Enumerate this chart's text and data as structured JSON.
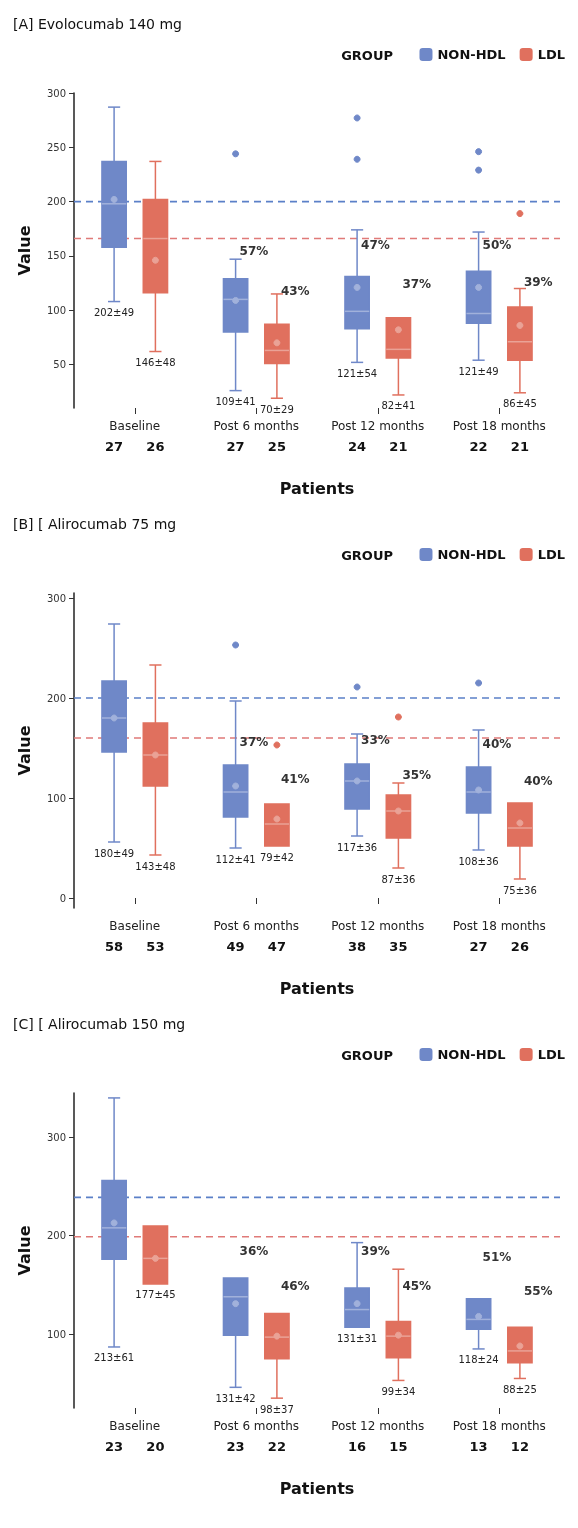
{
  "chart_data": [
    {
      "type": "box",
      "title": "[A] Evolocumab 140 mg",
      "xlabel": "Patients",
      "ylabel": "Value",
      "legend_title": "GROUP",
      "legend": "top right",
      "grid": false,
      "categories": [
        "Baseline",
        "Post 6 months",
        "Post 12 months",
        "Post 18 months"
      ],
      "ylim": [
        10,
        300
      ],
      "yticks": [
        50,
        100,
        150,
        200,
        250,
        300
      ],
      "series": [
        {
          "name": "NON-HDL",
          "color": "#6f88c8",
          "value_labels": [
            "202±49",
            "109±41",
            "121±54",
            "121±49"
          ],
          "boxes": [
            {
              "low": 108,
              "q1": 158,
              "median": 198,
              "q3": 237,
              "high": 287,
              "mean": 202
            },
            {
              "low": 26,
              "q1": 80,
              "median": 110,
              "q3": 129,
              "high": 147,
              "mean": 109,
              "outliers": [
                244
              ]
            },
            {
              "low": 52,
              "q1": 83,
              "median": 99,
              "q3": 131,
              "high": 174,
              "mean": 121,
              "outliers": [
                277,
                239
              ]
            },
            {
              "low": 54,
              "q1": 88,
              "median": 97,
              "q3": 136,
              "high": 172,
              "mean": 121,
              "outliers": [
                246,
                229
              ]
            }
          ]
        },
        {
          "name": "LDL",
          "color": "#e0705e",
          "value_labels": [
            "146±48",
            "70±29",
            "82±41",
            "86±45"
          ],
          "boxes": [
            {
              "low": 62,
              "q1": 116,
              "median": 166,
              "q3": 202,
              "high": 237,
              "mean": 146
            },
            {
              "low": 19,
              "q1": 51,
              "median": 63,
              "q3": 87,
              "high": 115,
              "mean": 70
            },
            {
              "low": 22,
              "q1": 56,
              "median": 64,
              "q3": 93,
              "high": 93,
              "mean": 82
            },
            {
              "low": 24,
              "q1": 54,
              "median": 71,
              "q3": 103,
              "high": 120,
              "mean": 86,
              "outliers": [
                189
              ]
            }
          ]
        }
      ],
      "ref_lines": [
        {
          "axis": "y",
          "value": 200,
          "color": "#5b80c8",
          "line_style": "dashed"
        },
        {
          "axis": "y",
          "value": 166,
          "color": "#e07a78",
          "line_style": "dashed"
        }
      ],
      "annotations": [
        "27",
        "26",
        "27",
        "25",
        "24",
        "21",
        "22",
        "21",
        "57%",
        "43%",
        "47%",
        "37%",
        "50%",
        "39%"
      ]
    },
    {
      "type": "box",
      "title": "[B] [ Alirocumab 75 mg",
      "xlabel": "Patients",
      "ylabel": "Value",
      "legend_title": "GROUP",
      "legend": "top right",
      "grid": false,
      "categories": [
        "Baseline",
        "Post 6 months",
        "Post 12 months",
        "Post 18 months"
      ],
      "ylim": [
        -10,
        305
      ],
      "yticks": [
        0,
        100,
        200,
        300
      ],
      "series": [
        {
          "name": "NON-HDL",
          "color": "#6f88c8",
          "value_labels": [
            "180±49",
            "112±41",
            "117±36",
            "108±36"
          ],
          "boxes": [
            {
              "low": 56,
              "q1": 146,
              "median": 180,
              "q3": 217,
              "high": 274,
              "mean": 180
            },
            {
              "low": 50,
              "q1": 81,
              "median": 106,
              "q3": 133,
              "high": 197,
              "mean": 112,
              "outliers": [
                253
              ]
            },
            {
              "low": 62,
              "q1": 89,
              "median": 117,
              "q3": 134,
              "high": 164,
              "mean": 117,
              "outliers": [
                211
              ]
            },
            {
              "low": 48,
              "q1": 85,
              "median": 106,
              "q3": 131,
              "high": 168,
              "mean": 108,
              "outliers": [
                215
              ]
            }
          ]
        },
        {
          "name": "LDL",
          "color": "#e0705e",
          "value_labels": [
            "143±48",
            "79±42",
            "87±36",
            "75±36"
          ],
          "boxes": [
            {
              "low": 43,
              "q1": 112,
              "median": 143,
              "q3": 175,
              "high": 233,
              "mean": 143
            },
            {
              "low": 52,
              "q1": 52,
              "median": 74,
              "q3": 94,
              "high": 94,
              "mean": 79,
              "outliers": [
                153
              ]
            },
            {
              "low": 30,
              "q1": 60,
              "median": 87,
              "q3": 103,
              "high": 115,
              "mean": 87,
              "outliers": [
                181
              ]
            },
            {
              "low": 19,
              "q1": 52,
              "median": 70,
              "q3": 95,
              "high": 95,
              "mean": 75
            }
          ]
        }
      ],
      "ref_lines": [
        {
          "axis": "y",
          "value": 200,
          "color": "#5b80c8",
          "line_style": "dashed"
        },
        {
          "axis": "y",
          "value": 160,
          "color": "#e07a78",
          "line_style": "dashed"
        }
      ],
      "annotations": [
        "58",
        "53",
        "49",
        "47",
        "38",
        "35",
        "27",
        "26",
        "37%",
        "41%",
        "33%",
        "35%",
        "40%",
        "40%"
      ]
    },
    {
      "type": "box",
      "title": "[C] [ Alirocumab 150 mg",
      "xlabel": "Patients",
      "ylabel": "Value",
      "legend_title": "GROUP",
      "legend": "top right",
      "grid": false,
      "categories": [
        "Baseline",
        "Post 6 months",
        "Post 12 months",
        "Post 18 months"
      ],
      "ylim": [
        25,
        345
      ],
      "yticks": [
        100,
        200,
        300
      ],
      "series": [
        {
          "name": "NON-HDL",
          "color": "#6f88c8",
          "value_labels": [
            "213±61",
            "131±42",
            "131±31",
            "118±24"
          ],
          "boxes": [
            {
              "low": 87,
              "q1": 176,
              "median": 208,
              "q3": 256,
              "high": 340,
              "mean": 213
            },
            {
              "low": 46,
              "q1": 99,
              "median": 138,
              "q3": 157,
              "high": 157,
              "mean": 131
            },
            {
              "low": 107,
              "q1": 107,
              "median": 125,
              "q3": 147,
              "high": 193,
              "mean": 131
            },
            {
              "low": 85,
              "q1": 105,
              "median": 115,
              "q3": 136,
              "high": 136,
              "mean": 118
            }
          ]
        },
        {
          "name": "LDL",
          "color": "#e0705e",
          "value_labels": [
            "177±45",
            "98±37",
            "99±34",
            "88±25"
          ],
          "boxes": [
            {
              "low": 151,
              "q1": 151,
              "median": 177,
              "q3": 210,
              "high": 210,
              "mean": 177
            },
            {
              "low": 35,
              "q1": 75,
              "median": 97,
              "q3": 121,
              "high": 121,
              "mean": 98
            },
            {
              "low": 53,
              "q1": 76,
              "median": 98,
              "q3": 113,
              "high": 166,
              "mean": 99
            },
            {
              "low": 55,
              "q1": 71,
              "median": 83,
              "q3": 107,
              "high": 107,
              "mean": 88
            }
          ]
        }
      ],
      "ref_lines": [
        {
          "axis": "y",
          "value": 239,
          "color": "#5b80c8",
          "line_style": "dashed"
        },
        {
          "axis": "y",
          "value": 199,
          "color": "#e07a78",
          "line_style": "dashed"
        }
      ],
      "annotations": [
        "23",
        "20",
        "23",
        "22",
        "16",
        "15",
        "13",
        "12",
        "36%",
        "46%",
        "39%",
        "45%",
        "51%",
        "55%"
      ]
    }
  ]
}
